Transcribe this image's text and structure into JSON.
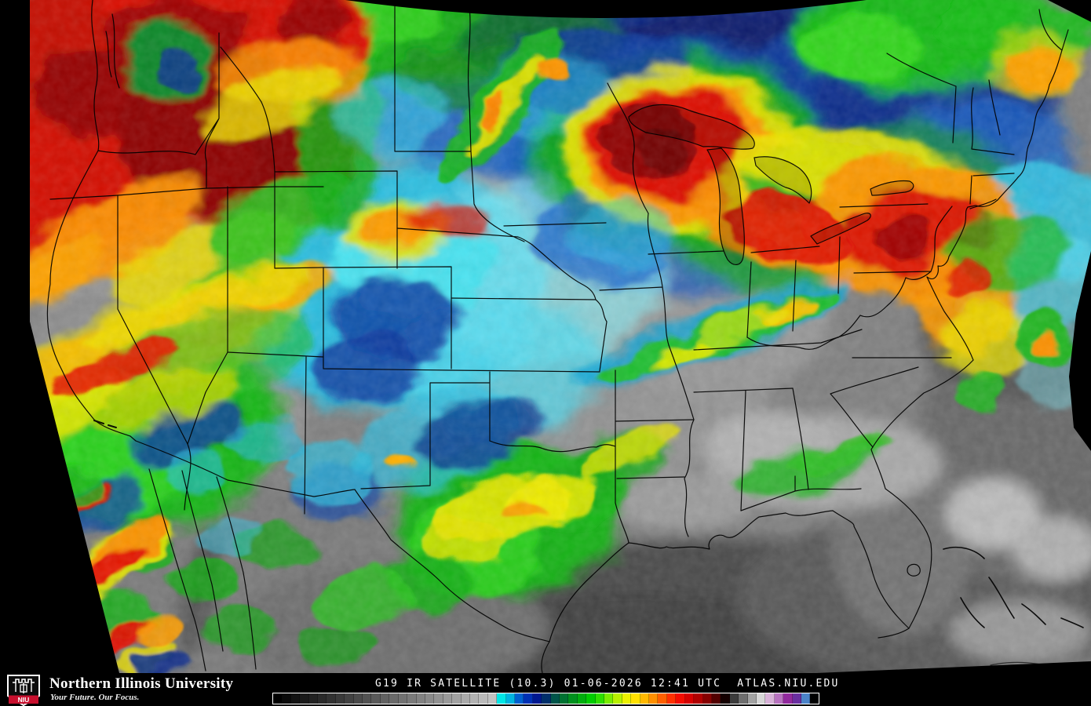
{
  "map": {
    "palette": {
      "cold_cloud_red": "#dd1000",
      "very_cold_dark_red": "#8a0000",
      "cold_orange": "#ff9800",
      "cold_yellow": "#eee600",
      "cool_green": "#14b014",
      "cool_cyan": "#3ccce8",
      "cool_blue": "#1260cc",
      "cool_navy": "#0a2d8c",
      "warm_ground_gray": "#828282",
      "border_color": "#000000"
    }
  },
  "footer": {
    "logo": {
      "monogram": "NIU",
      "org": "Northern Illinois University",
      "tagline": "Your Future. Our Focus.",
      "shield_red": "#c8102e"
    },
    "caption": "G19 IR SATELLITE (10.3) 01-06-2026 12:41 UTC  ATLAS.NIU.EDU",
    "colorbar": {
      "colors": [
        "#000000",
        "#0a0a0a",
        "#121212",
        "#1a1a1a",
        "#222222",
        "#2a2a2a",
        "#323232",
        "#3a3a3a",
        "#424242",
        "#4a4a4a",
        "#525252",
        "#5a5a5a",
        "#626262",
        "#6a6a6a",
        "#727272",
        "#7a7a7a",
        "#828282",
        "#8a8a8a",
        "#929292",
        "#9a9a9a",
        "#a2a2a2",
        "#aaaaaa",
        "#b2b2b2",
        "#bababa",
        "#c2c2c2",
        "#00e6e6",
        "#00b4e0",
        "#0060d0",
        "#0030b4",
        "#001890",
        "#002f6a",
        "#00554a",
        "#007232",
        "#00901e",
        "#00ae0e",
        "#00cc00",
        "#2ede00",
        "#7aec00",
        "#b8f000",
        "#ecf000",
        "#ffe000",
        "#ffb800",
        "#ff9000",
        "#ff6000",
        "#ff3000",
        "#f40c00",
        "#d60000",
        "#b00000",
        "#860000",
        "#520000",
        "#140000",
        "#3c3c3c",
        "#6e6e6e",
        "#a2a2a2",
        "#d6d6d6",
        "#d8b2d8",
        "#b872c0",
        "#922a9e",
        "#6a2fa0",
        "#4b83c8",
        "#000000"
      ]
    }
  }
}
